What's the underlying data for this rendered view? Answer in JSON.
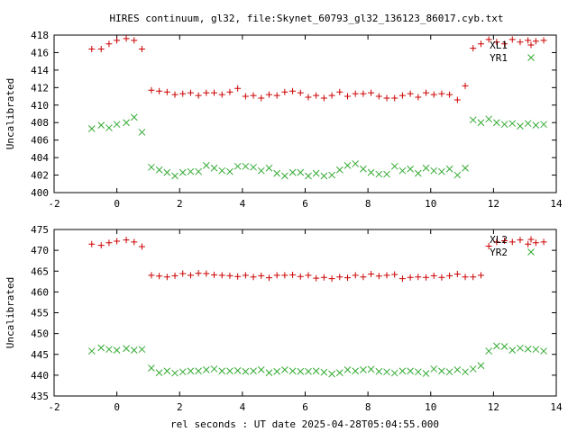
{
  "figure": {
    "title": "HIRES continuum, gl32, file:Skynet_60793_gl32_136123_86017.cyb.txt",
    "xlabel": "rel seconds : UT date 2025-04-28T05:04:55.000"
  },
  "colors": {
    "plus_series": "#cc0000",
    "cross_series": "#33aa33",
    "axes": "#000000"
  },
  "chart_data": [
    {
      "type": "scatter",
      "title": "HIRES continuum, gl32, file:Skynet_60793_gl32_136123_86017.cyb.txt",
      "xlabel": "",
      "ylabel": "Uncalibrated",
      "xlim": [
        -2,
        14
      ],
      "ylim": [
        400,
        418
      ],
      "xticks": [
        -2,
        0,
        2,
        4,
        6,
        8,
        10,
        12,
        14
      ],
      "yticks": [
        400,
        402,
        404,
        406,
        408,
        410,
        412,
        414,
        416,
        418
      ],
      "grid": false,
      "legend_position": "top-right",
      "series": [
        {
          "name": "XL1",
          "marker": "plus",
          "color": "#cc0000",
          "x": [
            -0.8,
            -0.5,
            -0.25,
            0.0,
            0.3,
            0.55,
            0.8,
            1.1,
            1.35,
            1.6,
            1.85,
            2.1,
            2.35,
            2.6,
            2.85,
            3.1,
            3.35,
            3.6,
            3.85,
            4.1,
            4.35,
            4.6,
            4.85,
            5.1,
            5.35,
            5.6,
            5.85,
            6.1,
            6.35,
            6.6,
            6.85,
            7.1,
            7.35,
            7.6,
            7.85,
            8.1,
            8.35,
            8.6,
            8.85,
            9.1,
            9.35,
            9.6,
            9.85,
            10.1,
            10.35,
            10.6,
            10.85,
            11.1,
            11.35,
            11.6,
            11.85,
            12.1,
            12.35,
            12.6,
            12.85,
            13.1,
            13.35,
            13.6
          ],
          "y": [
            416.4,
            416.4,
            417.0,
            417.4,
            417.6,
            417.4,
            416.4,
            411.7,
            411.6,
            411.5,
            411.2,
            411.3,
            411.4,
            411.1,
            411.4,
            411.4,
            411.2,
            411.5,
            411.9,
            411.0,
            411.1,
            410.8,
            411.2,
            411.1,
            411.5,
            411.6,
            411.4,
            410.9,
            411.1,
            410.8,
            411.1,
            411.5,
            411.0,
            411.3,
            411.3,
            411.4,
            411.0,
            410.8,
            410.8,
            411.1,
            411.3,
            410.9,
            411.4,
            411.2,
            411.3,
            411.2,
            410.6,
            412.2,
            416.5,
            417.0,
            417.5,
            417.2,
            417.0,
            417.5,
            417.2,
            417.4,
            417.3,
            417.4
          ]
        },
        {
          "name": "YR1",
          "marker": "cross",
          "color": "#33aa33",
          "x": [
            -0.8,
            -0.5,
            -0.25,
            0.0,
            0.3,
            0.55,
            0.8,
            1.1,
            1.35,
            1.6,
            1.85,
            2.1,
            2.35,
            2.6,
            2.85,
            3.1,
            3.35,
            3.6,
            3.85,
            4.1,
            4.35,
            4.6,
            4.85,
            5.1,
            5.35,
            5.6,
            5.85,
            6.1,
            6.35,
            6.6,
            6.85,
            7.1,
            7.35,
            7.6,
            7.85,
            8.1,
            8.35,
            8.6,
            8.85,
            9.1,
            9.35,
            9.6,
            9.85,
            10.1,
            10.35,
            10.6,
            10.85,
            11.1,
            11.35,
            11.6,
            11.85,
            12.1,
            12.35,
            12.6,
            12.85,
            13.1,
            13.35,
            13.6
          ],
          "y": [
            407.3,
            407.7,
            407.4,
            407.8,
            408.0,
            408.6,
            406.9,
            402.9,
            402.6,
            402.3,
            401.9,
            402.3,
            402.4,
            402.4,
            403.1,
            402.8,
            402.5,
            402.4,
            403.0,
            403.0,
            402.9,
            402.5,
            402.8,
            402.2,
            401.9,
            402.3,
            402.3,
            401.9,
            402.2,
            401.9,
            402.0,
            402.6,
            403.1,
            403.3,
            402.7,
            402.3,
            402.1,
            402.1,
            403.0,
            402.5,
            402.7,
            402.2,
            402.8,
            402.5,
            402.4,
            402.7,
            402.0,
            402.8,
            408.3,
            408.0,
            408.4,
            408.0,
            407.8,
            407.9,
            407.6,
            407.9,
            407.7,
            407.8
          ]
        }
      ]
    },
    {
      "type": "scatter",
      "title": "",
      "xlabel": "rel seconds : UT date 2025-04-28T05:04:55.000",
      "ylabel": "Uncalibrated",
      "xlim": [
        -2,
        14
      ],
      "ylim": [
        435,
        475
      ],
      "xticks": [
        -2,
        0,
        2,
        4,
        6,
        8,
        10,
        12,
        14
      ],
      "yticks": [
        435,
        440,
        445,
        450,
        455,
        460,
        465,
        470,
        475
      ],
      "grid": false,
      "legend_position": "top-right",
      "series": [
        {
          "name": "XL2",
          "marker": "plus",
          "color": "#cc0000",
          "x": [
            -0.8,
            -0.5,
            -0.25,
            0.0,
            0.3,
            0.55,
            0.8,
            1.1,
            1.35,
            1.6,
            1.85,
            2.1,
            2.35,
            2.6,
            2.85,
            3.1,
            3.35,
            3.6,
            3.85,
            4.1,
            4.35,
            4.6,
            4.85,
            5.1,
            5.35,
            5.6,
            5.85,
            6.1,
            6.35,
            6.6,
            6.85,
            7.1,
            7.35,
            7.6,
            7.85,
            8.1,
            8.35,
            8.6,
            8.85,
            9.1,
            9.35,
            9.6,
            9.85,
            10.1,
            10.35,
            10.6,
            10.85,
            11.1,
            11.35,
            11.6,
            11.85,
            12.1,
            12.35,
            12.6,
            12.85,
            13.1,
            13.35,
            13.6
          ],
          "y": [
            471.5,
            471.2,
            471.8,
            472.2,
            472.5,
            472.0,
            470.9,
            464.0,
            463.8,
            463.6,
            463.9,
            464.4,
            464.0,
            464.5,
            464.4,
            464.1,
            464.0,
            463.9,
            463.7,
            464.0,
            463.6,
            463.9,
            463.4,
            464.0,
            464.0,
            464.1,
            463.7,
            464.0,
            463.3,
            463.5,
            463.2,
            463.6,
            463.4,
            464.0,
            463.6,
            464.3,
            463.8,
            464.0,
            464.2,
            463.2,
            463.5,
            463.6,
            463.5,
            463.9,
            463.5,
            463.9,
            464.3,
            463.6,
            463.6,
            464.0,
            471.0,
            472.0,
            472.3,
            472.0,
            472.5,
            471.5,
            471.8,
            472.0
          ]
        },
        {
          "name": "YR2",
          "marker": "cross",
          "color": "#33aa33",
          "x": [
            -0.8,
            -0.5,
            -0.25,
            0.0,
            0.3,
            0.55,
            0.8,
            1.1,
            1.35,
            1.6,
            1.85,
            2.1,
            2.35,
            2.6,
            2.85,
            3.1,
            3.35,
            3.6,
            3.85,
            4.1,
            4.35,
            4.6,
            4.85,
            5.1,
            5.35,
            5.6,
            5.85,
            6.1,
            6.35,
            6.6,
            6.85,
            7.1,
            7.35,
            7.6,
            7.85,
            8.1,
            8.35,
            8.6,
            8.85,
            9.1,
            9.35,
            9.6,
            9.85,
            10.1,
            10.35,
            10.6,
            10.85,
            11.1,
            11.35,
            11.6,
            11.85,
            12.1,
            12.35,
            12.6,
            12.85,
            13.1,
            13.35,
            13.6
          ],
          "y": [
            445.8,
            446.6,
            446.2,
            446.0,
            446.4,
            446.0,
            446.2,
            441.7,
            440.6,
            441.0,
            440.5,
            440.8,
            441.0,
            441.0,
            441.3,
            441.5,
            441.0,
            441.0,
            441.1,
            440.9,
            441.0,
            441.3,
            440.6,
            440.9,
            441.3,
            441.0,
            440.9,
            440.9,
            441.0,
            440.7,
            440.3,
            440.6,
            441.3,
            441.0,
            441.3,
            441.4,
            440.9,
            440.8,
            440.5,
            441.0,
            441.0,
            440.8,
            440.4,
            441.5,
            441.0,
            440.8,
            441.3,
            440.8,
            441.5,
            442.3,
            445.8,
            447.0,
            446.9,
            446.0,
            446.5,
            446.3,
            446.2,
            445.8
          ]
        }
      ]
    }
  ]
}
